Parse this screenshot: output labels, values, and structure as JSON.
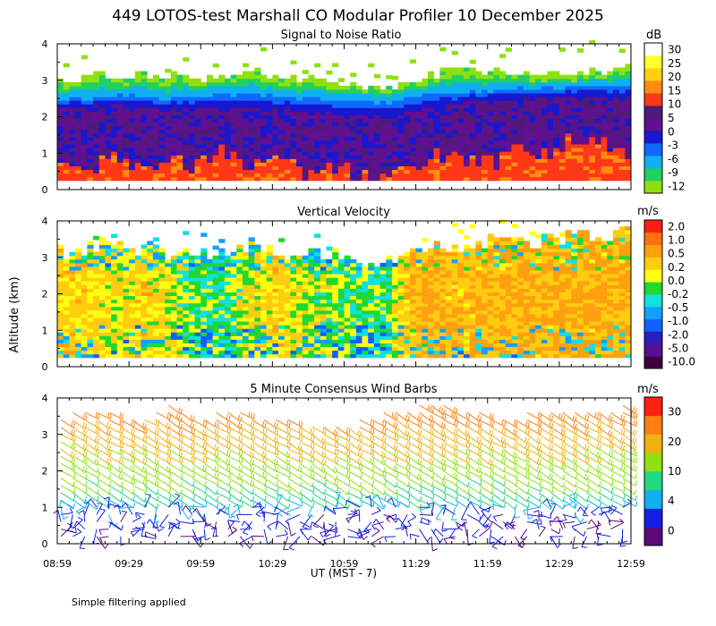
{
  "chart_data": {
    "title": "449 LOTOS-test Marshall CO Modular Profiler 10 December 2025",
    "ylabel": "Altitude (km)",
    "xlabel": "UT  (MST - 7)",
    "x_ticks": [
      "08:59",
      "09:29",
      "09:59",
      "10:29",
      "10:59",
      "11:29",
      "11:59",
      "12:29",
      "12:59"
    ],
    "footnote": "Simple filtering applied",
    "panels": [
      {
        "type": "heatmap",
        "title": "Signal to Noise Ratio",
        "unit": "dB",
        "ylim": [
          0,
          4
        ],
        "y_ticks": [
          "0",
          "1",
          "2",
          "3",
          "4"
        ],
        "colorbar": {
          "labels": [
            "-12",
            "-9",
            "-6",
            "-3",
            "0",
            "5",
            "10",
            "15",
            "20",
            "25",
            "30"
          ],
          "colors": [
            "#90e010",
            "#20d060",
            "#10b0f0",
            "#1068ff",
            "#1818d0",
            "#601090",
            "#501a78",
            "#ff3818",
            "#ff8c10",
            "#ffd010",
            "#ffff30",
            "#ffffff"
          ]
        },
        "data_top_km": [
          2.95,
          3.05,
          3.1,
          3.15,
          3.1,
          3.0,
          3.05,
          3.2,
          3.1,
          3.0,
          2.9,
          2.8,
          2.75,
          2.95,
          3.15,
          3.25,
          3.2,
          3.15,
          3.1,
          3.2,
          3.25,
          3.3
        ],
        "mid_top_km": [
          2.5,
          2.55,
          2.6,
          2.6,
          2.55,
          2.6,
          2.65,
          2.65,
          2.6,
          2.55,
          2.5,
          2.5,
          2.45,
          2.55,
          2.65,
          2.7,
          2.75,
          2.8,
          2.8,
          2.85,
          2.85,
          2.9
        ],
        "strong_top_km": [
          2.2,
          2.2,
          2.25,
          2.2,
          2.15,
          2.2,
          2.2,
          2.2,
          2.15,
          2.1,
          2.05,
          2.0,
          1.95,
          2.1,
          2.25,
          2.35,
          2.4,
          2.45,
          2.45,
          2.5,
          2.5,
          2.5
        ],
        "high_top_km": [
          0.75,
          0.55,
          0.9,
          0.6,
          0.8,
          0.5,
          1.1,
          0.55,
          0.85,
          0.35,
          0.6,
          0.4,
          0.3,
          0.55,
          0.95,
          0.85,
          0.6,
          1.25,
          0.9,
          1.35,
          1.2,
          0.9
        ]
      },
      {
        "type": "heatmap",
        "title": "Vertical Velocity",
        "unit": "m/s",
        "ylim": [
          0,
          4
        ],
        "y_ticks": [
          "0",
          "1",
          "2",
          "3",
          "4"
        ],
        "colorbar": {
          "labels": [
            "-10.0",
            "-5.0",
            "-2.0",
            "-1.0",
            "-0.5",
            "-0.2",
            "0.0",
            "0.2",
            "0.5",
            "1.0",
            "2.0"
          ],
          "colors": [
            "#400040",
            "#5a1090",
            "#2a20c0",
            "#1060ff",
            "#10a0ff",
            "#10e0e0",
            "#20d830",
            "#ffff10",
            "#ffcc10",
            "#ffa010",
            "#ff7010",
            "#ff1c10"
          ]
        },
        "values_ms": [
          0.3,
          0.3,
          0.1,
          0.3,
          0.1,
          -0.1,
          -0.2,
          0.1,
          0.3,
          0.1,
          0.0,
          -0.1,
          -0.2,
          0.5,
          0.5,
          0.4,
          0.5,
          0.5,
          0.6,
          0.5,
          0.6,
          0.6
        ],
        "data_top_km": [
          3.05,
          3.2,
          3.3,
          3.2,
          3.1,
          3.0,
          3.1,
          3.3,
          3.2,
          3.1,
          3.0,
          2.9,
          2.9,
          3.1,
          3.2,
          3.35,
          3.4,
          3.45,
          3.4,
          3.5,
          3.5,
          3.6
        ]
      },
      {
        "type": "scatter",
        "title": "5 Minute Consensus Wind Barbs",
        "unit": "m/s",
        "ylim": [
          0,
          4
        ],
        "y_ticks": [
          "0",
          "1",
          "2",
          "3",
          "4"
        ],
        "colorbar": {
          "labels": [
            "0",
            "4",
            "10",
            "20",
            "30"
          ],
          "colors": [
            "#5a0a7a",
            "#1020e0",
            "#10b0f0",
            "#20d880",
            "#90e010",
            "#f0b010",
            "#ff8010",
            "#ff2010"
          ]
        },
        "speed_profile": {
          "altitudes_km": [
            0.1,
            0.9,
            1.2,
            1.6,
            2.0,
            2.5,
            3.0,
            3.5,
            4.0
          ],
          "speeds_ms": [
            2,
            3,
            7,
            10,
            12,
            14,
            16,
            19,
            21
          ]
        },
        "barb_top_km": [
          3.5,
          3.8,
          3.6,
          3.4,
          3.9,
          3.5,
          3.7,
          3.6,
          3.5,
          3.3,
          3.2,
          3.4,
          3.6,
          3.8,
          3.9,
          3.7,
          3.6,
          3.5,
          3.8,
          3.7,
          3.6,
          3.9
        ]
      }
    ]
  }
}
